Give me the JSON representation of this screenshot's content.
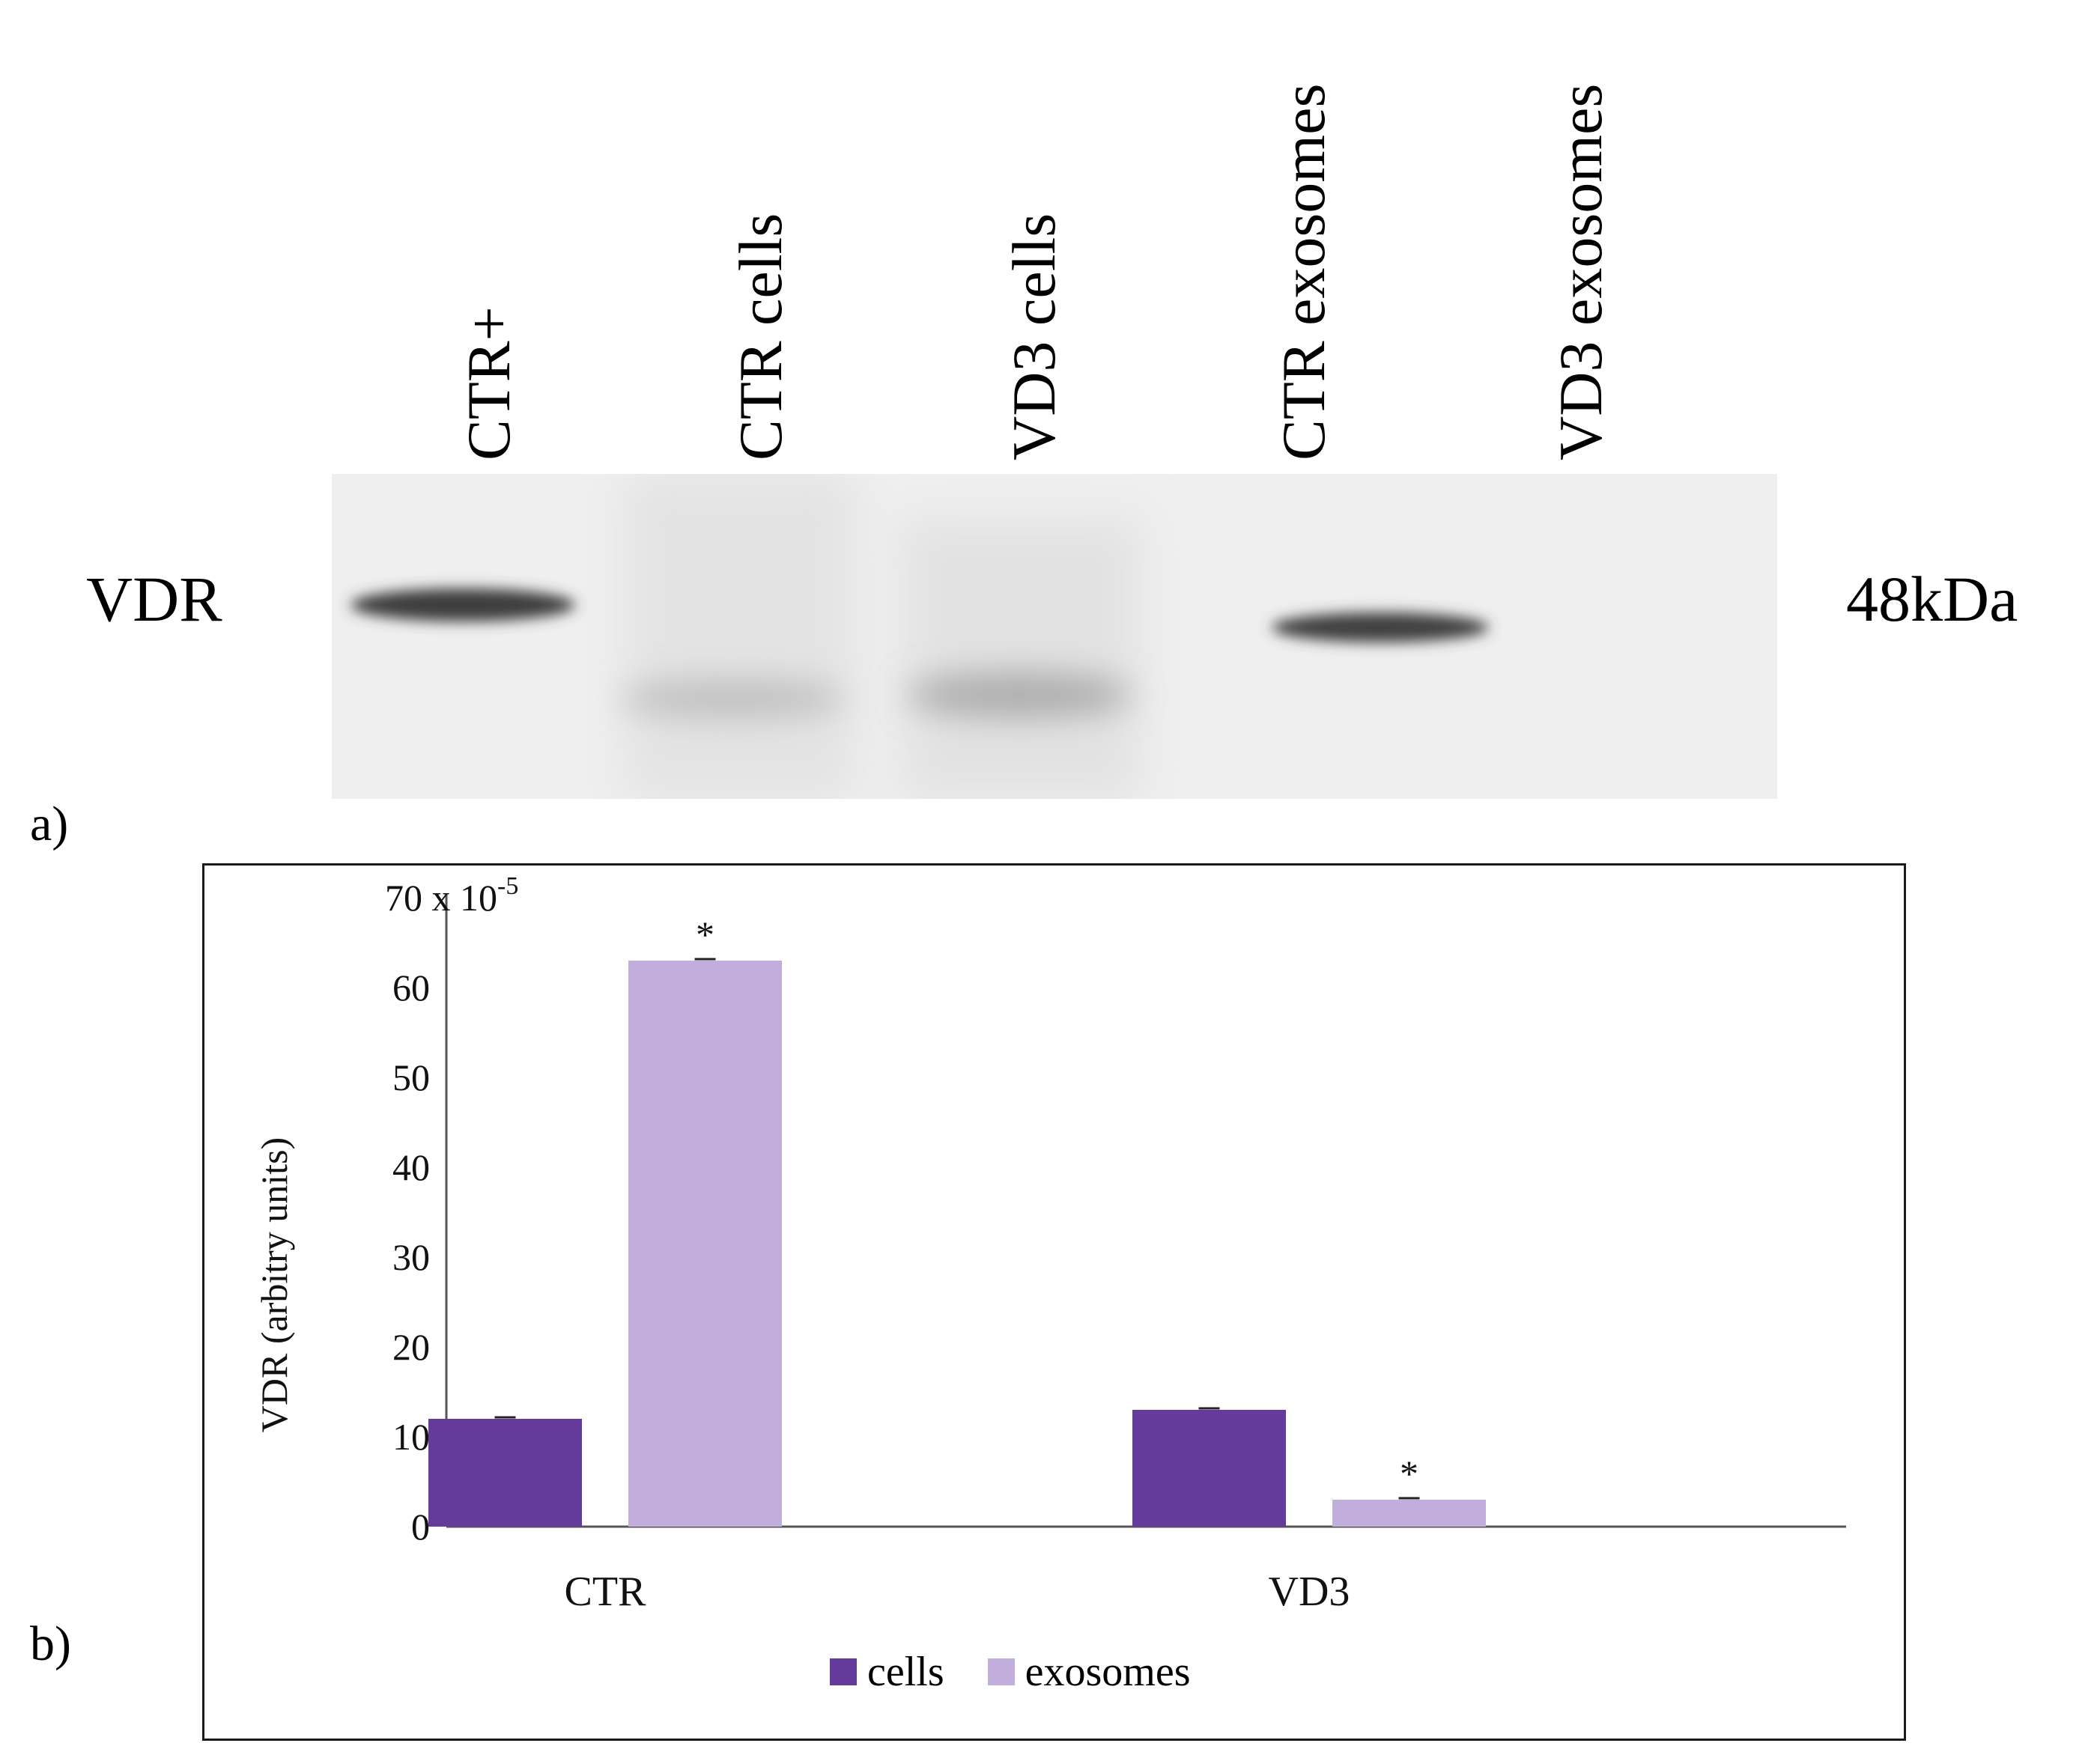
{
  "blot": {
    "lane_labels": [
      "CTR+",
      "CTR cells",
      "VD3 cells",
      "CTR  exosomes",
      "VD3 exosomes"
    ],
    "protein_label": "VDR",
    "size_label": "48kDa",
    "panel_label": "a)"
  },
  "chart_panel_label": "b)",
  "chart_data": {
    "type": "bar",
    "categories": [
      "CTR",
      "VD3"
    ],
    "series": [
      {
        "name": "cells",
        "values": [
          12,
          13
        ],
        "color": "#643B9A",
        "significant": [
          false,
          false
        ]
      },
      {
        "name": "exosomes",
        "values": [
          63,
          3
        ],
        "color": "#C2AEDA",
        "significant": [
          true,
          true
        ]
      }
    ],
    "ylabel": "VDR  (arbitry units)",
    "y_scale_note": "70 x 10",
    "y_scale_exponent": "-5",
    "ylim": [
      0,
      70
    ],
    "yticks": [
      0,
      10,
      20,
      30,
      40,
      50,
      60
    ],
    "significance_marker": "*",
    "legend_position": "bottom",
    "grid": false
  }
}
